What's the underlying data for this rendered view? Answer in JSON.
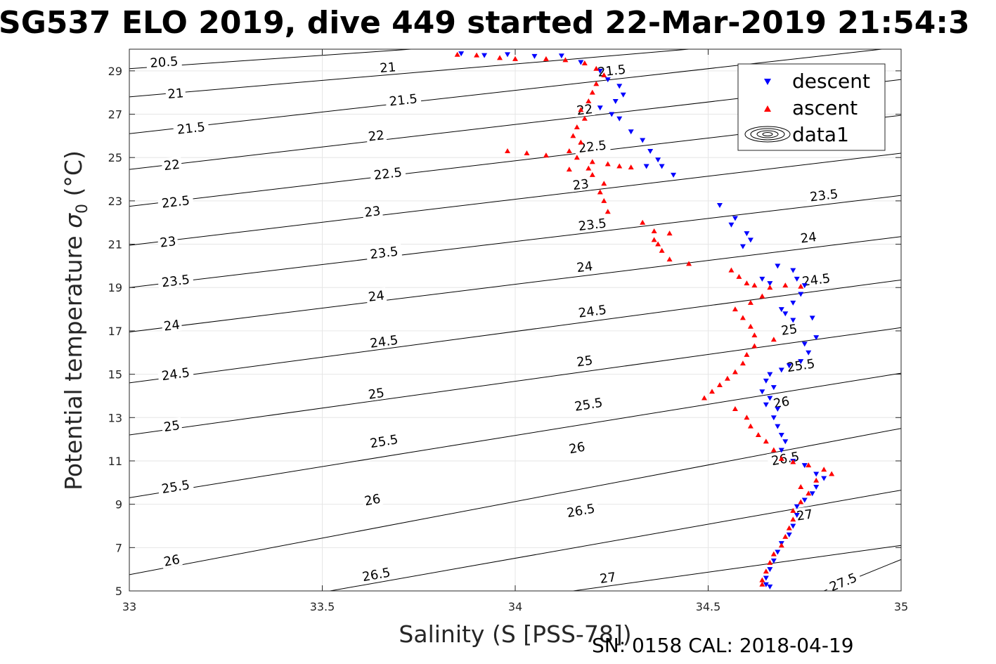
{
  "chart_data": {
    "type": "scatter",
    "title": "SG537 ELO 2019, dive 449 started 22-Mar-2019 21:54:3",
    "xlabel": "Salinity (S [PSS-78])",
    "ylabel_main": "Potential temperature ",
    "ylabel_sigma": "σ",
    "ylabel_sub": "0",
    "ylabel_unit": " (°C)",
    "footer": "SN: 0158  CAL: 2018-04-19",
    "xlim": [
      33,
      35
    ],
    "ylim": [
      5,
      30
    ],
    "grid": true,
    "legend_position": "top-right",
    "x_ticks": [
      33,
      33.5,
      34,
      34.5,
      35
    ],
    "x_tick_labels": [
      "33",
      "33.5",
      "34",
      "34.5",
      "35"
    ],
    "y_ticks": [
      5,
      7,
      9,
      11,
      13,
      15,
      17,
      19,
      21,
      23,
      25,
      27,
      29
    ],
    "y_tick_labels": [
      "5",
      "7",
      "9",
      "11",
      "13",
      "15",
      "17",
      "19",
      "21",
      "23",
      "25",
      "27",
      "29"
    ],
    "legend": [
      {
        "name": "descent",
        "marker": "triangle-down",
        "color": "#0000ff"
      },
      {
        "name": "ascent",
        "marker": "triangle-up",
        "color": "#ff0000"
      },
      {
        "name": "data1",
        "marker": "contour",
        "color": "#000000"
      }
    ],
    "contours": [
      {
        "label": "20.5",
        "x0": 33,
        "y0": 29.1,
        "x1": 33.73,
        "y1": 30
      },
      {
        "label": "21",
        "x0": 33,
        "y0": 27.8,
        "x1": 34.45,
        "y1": 30
      },
      {
        "label": "21.5",
        "x0": 33,
        "y0": 26.1,
        "x1": 34.95,
        "y1": 30
      },
      {
        "label": "22",
        "x0": 33,
        "y0": 24.45,
        "x1": 35,
        "y1": 28.6
      },
      {
        "label": "22.5",
        "x0": 33,
        "y0": 22.75,
        "x1": 35,
        "y1": 26.95
      },
      {
        "label": "23",
        "x0": 33,
        "y0": 20.95,
        "x1": 35,
        "y1": 25.2
      },
      {
        "label": "23.5",
        "x0": 33,
        "y0": 19.0,
        "x1": 35,
        "y1": 23.25
      },
      {
        "label": "24",
        "x0": 33,
        "y0": 16.95,
        "x1": 35,
        "y1": 21.35
      },
      {
        "label": "24.5",
        "x0": 33,
        "y0": 14.6,
        "x1": 35,
        "y1": 19.35
      },
      {
        "label": "25",
        "x0": 33,
        "y0": 12.2,
        "x1": 35,
        "y1": 17.15
      },
      {
        "label": "25.5",
        "x0": 33,
        "y0": 9.3,
        "x1": 35,
        "y1": 15.05
      },
      {
        "label": "26",
        "x0": 33,
        "y0": 5.75,
        "x1": 35,
        "y1": 12.5
      },
      {
        "label": "26.5",
        "x0": 33.52,
        "y0": 5,
        "x1": 35,
        "y1": 9.65
      },
      {
        "label": "27",
        "x0": 34.15,
        "y0": 5,
        "x1": 35,
        "y1": 7.1
      },
      {
        "label": "27.5",
        "x0": 34.8,
        "y0": 5,
        "x1": 35,
        "y1": 6.45
      }
    ],
    "contour_labels": [
      {
        "text": "20.5",
        "x": 33.09,
        "y": 29.4
      },
      {
        "text": "21",
        "x": 33.12,
        "y": 27.95
      },
      {
        "text": "21",
        "x": 33.67,
        "y": 29.15
      },
      {
        "text": "21.5",
        "x": 33.16,
        "y": 26.35
      },
      {
        "text": "21.5",
        "x": 33.71,
        "y": 27.65
      },
      {
        "text": "21.5",
        "x": 34.25,
        "y": 29.0
      },
      {
        "text": "22",
        "x": 33.11,
        "y": 24.65
      },
      {
        "text": "22",
        "x": 33.64,
        "y": 26.0
      },
      {
        "text": "22",
        "x": 34.18,
        "y": 27.2
      },
      {
        "text": "22.5",
        "x": 33.12,
        "y": 22.95
      },
      {
        "text": "22.5",
        "x": 33.67,
        "y": 24.25
      },
      {
        "text": "22.5",
        "x": 34.2,
        "y": 25.5
      },
      {
        "text": "23",
        "x": 33.1,
        "y": 21.1
      },
      {
        "text": "23",
        "x": 33.63,
        "y": 22.5
      },
      {
        "text": "23",
        "x": 34.17,
        "y": 23.75
      },
      {
        "text": "23.5",
        "x": 33.12,
        "y": 19.3
      },
      {
        "text": "23.5",
        "x": 33.66,
        "y": 20.6
      },
      {
        "text": "23.5",
        "x": 34.2,
        "y": 21.9
      },
      {
        "text": "23.5",
        "x": 34.8,
        "y": 23.25
      },
      {
        "text": "24",
        "x": 33.11,
        "y": 17.25
      },
      {
        "text": "24",
        "x": 33.64,
        "y": 18.6
      },
      {
        "text": "24",
        "x": 34.18,
        "y": 19.95
      },
      {
        "text": "24",
        "x": 34.76,
        "y": 21.3
      },
      {
        "text": "24.5",
        "x": 33.12,
        "y": 15.0
      },
      {
        "text": "24.5",
        "x": 33.66,
        "y": 16.5
      },
      {
        "text": "24.5",
        "x": 34.2,
        "y": 17.9
      },
      {
        "text": "24.5",
        "x": 34.78,
        "y": 19.35
      },
      {
        "text": "25",
        "x": 33.11,
        "y": 12.6
      },
      {
        "text": "25",
        "x": 33.64,
        "y": 14.1
      },
      {
        "text": "25",
        "x": 34.18,
        "y": 15.6
      },
      {
        "text": "25",
        "x": 34.71,
        "y": 17.05
      },
      {
        "text": "25.5",
        "x": 33.12,
        "y": 9.8
      },
      {
        "text": "25.5",
        "x": 33.66,
        "y": 11.9
      },
      {
        "text": "25.5",
        "x": 34.19,
        "y": 13.6
      },
      {
        "text": "25.5",
        "x": 34.74,
        "y": 15.4
      },
      {
        "text": "26",
        "x": 33.11,
        "y": 6.4
      },
      {
        "text": "26",
        "x": 33.63,
        "y": 9.2
      },
      {
        "text": "26",
        "x": 34.16,
        "y": 11.6
      },
      {
        "text": "26",
        "x": 34.69,
        "y": 13.7
      },
      {
        "text": "26.5",
        "x": 33.64,
        "y": 5.75
      },
      {
        "text": "26.5",
        "x": 34.17,
        "y": 8.7
      },
      {
        "text": "26.5",
        "x": 34.7,
        "y": 11.1
      },
      {
        "text": "27",
        "x": 34.24,
        "y": 5.6
      },
      {
        "text": "27",
        "x": 34.75,
        "y": 8.5
      },
      {
        "text": "27.5",
        "x": 34.85,
        "y": 5.4
      }
    ],
    "series": [
      {
        "name": "descent",
        "marker": "triangle-down",
        "color": "#0000ff",
        "points": [
          [
            33.86,
            29.8
          ],
          [
            33.92,
            29.72
          ],
          [
            33.98,
            29.76
          ],
          [
            34.05,
            29.68
          ],
          [
            34.12,
            29.7
          ],
          [
            34.17,
            29.4
          ],
          [
            34.22,
            29.0
          ],
          [
            34.24,
            28.6
          ],
          [
            34.27,
            28.3
          ],
          [
            34.28,
            27.9
          ],
          [
            34.26,
            27.6
          ],
          [
            34.22,
            27.3
          ],
          [
            34.25,
            27.0
          ],
          [
            34.27,
            26.8
          ],
          [
            34.3,
            26.2
          ],
          [
            34.33,
            25.8
          ],
          [
            34.35,
            25.3
          ],
          [
            34.37,
            24.9
          ],
          [
            34.34,
            24.6
          ],
          [
            34.38,
            24.6
          ],
          [
            34.41,
            24.2
          ],
          [
            34.53,
            22.8
          ],
          [
            34.57,
            22.2
          ],
          [
            34.56,
            21.9
          ],
          [
            34.6,
            21.5
          ],
          [
            34.61,
            21.2
          ],
          [
            34.59,
            20.9
          ],
          [
            34.68,
            20.0
          ],
          [
            34.72,
            19.8
          ],
          [
            34.64,
            19.4
          ],
          [
            34.66,
            19.2
          ],
          [
            34.73,
            19.4
          ],
          [
            34.75,
            19.1
          ],
          [
            34.74,
            18.7
          ],
          [
            34.72,
            18.3
          ],
          [
            34.69,
            18.0
          ],
          [
            34.7,
            17.8
          ],
          [
            34.72,
            17.5
          ],
          [
            34.77,
            17.6
          ],
          [
            34.78,
            16.7
          ],
          [
            34.75,
            16.4
          ],
          [
            34.76,
            16.0
          ],
          [
            34.74,
            15.6
          ],
          [
            34.71,
            15.4
          ],
          [
            34.69,
            15.2
          ],
          [
            34.66,
            15.0
          ],
          [
            34.65,
            14.7
          ],
          [
            34.67,
            14.4
          ],
          [
            34.64,
            14.2
          ],
          [
            34.66,
            13.9
          ],
          [
            34.65,
            13.6
          ],
          [
            34.68,
            13.4
          ],
          [
            34.67,
            13.0
          ],
          [
            34.68,
            12.6
          ],
          [
            34.69,
            12.2
          ],
          [
            34.7,
            11.9
          ],
          [
            34.69,
            11.5
          ],
          [
            34.72,
            11.0
          ],
          [
            34.75,
            10.8
          ],
          [
            34.78,
            10.4
          ],
          [
            34.8,
            10.2
          ],
          [
            34.78,
            9.8
          ],
          [
            34.77,
            9.5
          ],
          [
            34.75,
            9.2
          ],
          [
            34.73,
            8.9
          ],
          [
            34.73,
            8.5
          ],
          [
            34.72,
            8.0
          ],
          [
            34.71,
            7.6
          ],
          [
            34.69,
            7.2
          ],
          [
            34.68,
            6.8
          ],
          [
            34.67,
            6.4
          ],
          [
            34.66,
            6.0
          ],
          [
            34.65,
            5.6
          ],
          [
            34.65,
            5.3
          ],
          [
            34.66,
            5.2
          ]
        ]
      },
      {
        "name": "ascent",
        "marker": "triangle-up",
        "color": "#ff0000",
        "points": [
          [
            33.85,
            29.75
          ],
          [
            33.9,
            29.72
          ],
          [
            33.96,
            29.6
          ],
          [
            34.0,
            29.55
          ],
          [
            34.08,
            29.55
          ],
          [
            34.13,
            29.5
          ],
          [
            34.18,
            29.35
          ],
          [
            34.21,
            29.1
          ],
          [
            34.23,
            28.8
          ],
          [
            34.21,
            28.4
          ],
          [
            34.2,
            28.0
          ],
          [
            34.19,
            27.6
          ],
          [
            34.17,
            27.2
          ],
          [
            34.18,
            26.8
          ],
          [
            34.16,
            26.4
          ],
          [
            34.15,
            26.0
          ],
          [
            34.17,
            25.7
          ],
          [
            33.98,
            25.3
          ],
          [
            34.03,
            25.2
          ],
          [
            34.08,
            25.1
          ],
          [
            34.14,
            25.3
          ],
          [
            34.16,
            25.0
          ],
          [
            34.2,
            24.8
          ],
          [
            34.24,
            24.7
          ],
          [
            34.27,
            24.6
          ],
          [
            34.3,
            24.55
          ],
          [
            34.19,
            24.5
          ],
          [
            34.14,
            24.45
          ],
          [
            34.2,
            24.2
          ],
          [
            34.23,
            23.8
          ],
          [
            34.22,
            23.4
          ],
          [
            34.23,
            23.0
          ],
          [
            34.24,
            22.5
          ],
          [
            34.33,
            22.0
          ],
          [
            34.36,
            21.6
          ],
          [
            34.4,
            21.5
          ],
          [
            34.36,
            21.2
          ],
          [
            34.37,
            21.0
          ],
          [
            34.38,
            20.7
          ],
          [
            34.4,
            20.3
          ],
          [
            34.45,
            20.1
          ],
          [
            34.56,
            19.8
          ],
          [
            34.58,
            19.5
          ],
          [
            34.6,
            19.2
          ],
          [
            34.62,
            19.1
          ],
          [
            34.66,
            19.0
          ],
          [
            34.7,
            19.1
          ],
          [
            34.74,
            19.05
          ],
          [
            34.64,
            18.6
          ],
          [
            34.61,
            18.3
          ],
          [
            34.57,
            18.0
          ],
          [
            34.59,
            17.6
          ],
          [
            34.61,
            17.2
          ],
          [
            34.62,
            16.8
          ],
          [
            34.67,
            16.6
          ],
          [
            34.62,
            16.3
          ],
          [
            34.6,
            15.9
          ],
          [
            34.59,
            15.5
          ],
          [
            34.57,
            15.1
          ],
          [
            34.55,
            14.8
          ],
          [
            34.53,
            14.5
          ],
          [
            34.51,
            14.2
          ],
          [
            34.49,
            13.9
          ],
          [
            34.57,
            13.4
          ],
          [
            34.6,
            13.0
          ],
          [
            34.61,
            12.6
          ],
          [
            34.63,
            12.2
          ],
          [
            34.65,
            11.9
          ],
          [
            34.67,
            11.5
          ],
          [
            34.69,
            11.1
          ],
          [
            34.72,
            10.95
          ],
          [
            34.76,
            10.8
          ],
          [
            34.8,
            10.6
          ],
          [
            34.82,
            10.4
          ],
          [
            34.78,
            10.1
          ],
          [
            34.74,
            9.8
          ],
          [
            34.76,
            9.5
          ],
          [
            34.74,
            9.1
          ],
          [
            34.72,
            8.7
          ],
          [
            34.72,
            8.3
          ],
          [
            34.71,
            7.9
          ],
          [
            34.7,
            7.5
          ],
          [
            34.69,
            7.1
          ],
          [
            34.67,
            6.7
          ],
          [
            34.66,
            6.3
          ],
          [
            34.65,
            5.9
          ],
          [
            34.64,
            5.5
          ],
          [
            34.64,
            5.3
          ]
        ]
      }
    ]
  }
}
